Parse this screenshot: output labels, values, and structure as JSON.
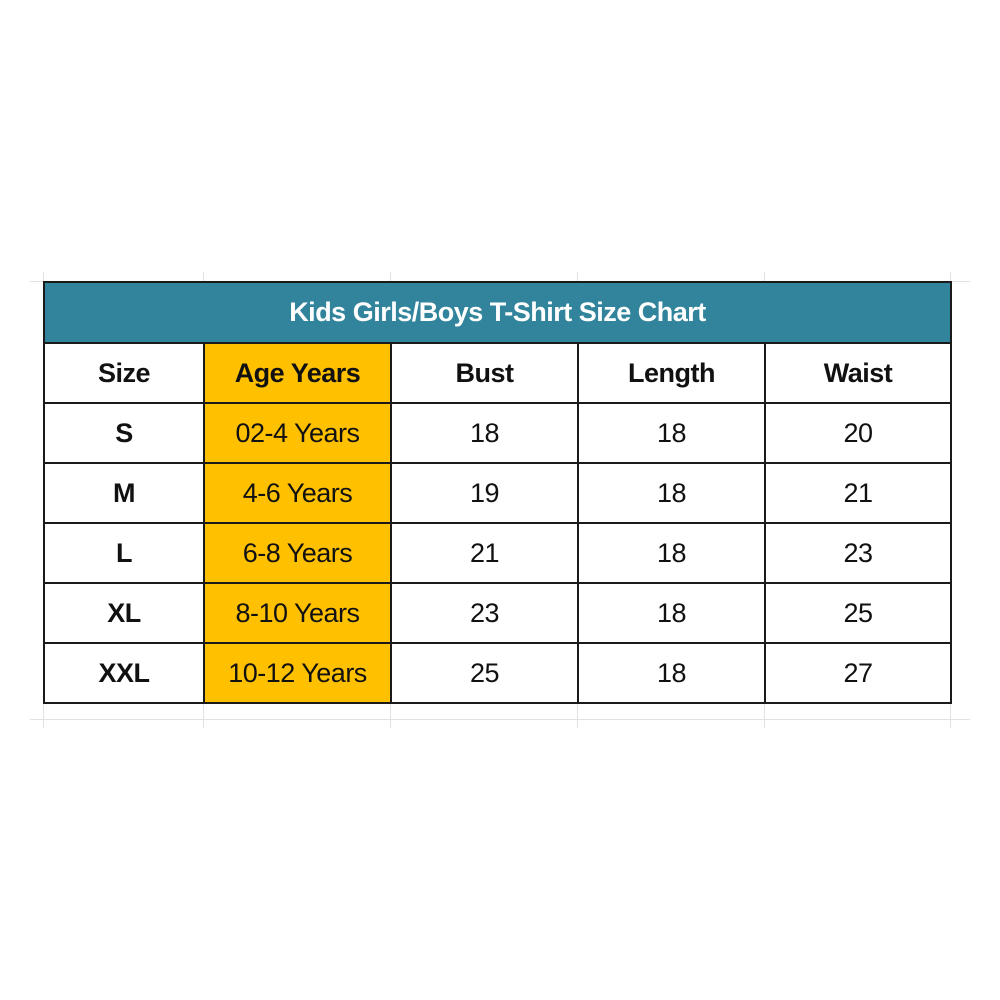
{
  "title": "Kids Girls/Boys T-Shirt Size Chart",
  "colors": {
    "title_bg": "#31849b",
    "age_column_bg": "#ffc000"
  },
  "columns": [
    "Size",
    "Age Years",
    "Bust",
    "Length",
    "Waist"
  ],
  "rows": [
    [
      "S",
      "02-4 Years",
      "18",
      "18",
      "20"
    ],
    [
      "M",
      "4-6 Years",
      "19",
      "18",
      "21"
    ],
    [
      "L",
      "6-8 Years",
      "21",
      "18",
      "23"
    ],
    [
      "XL",
      "8-10 Years",
      "23",
      "18",
      "25"
    ],
    [
      "XXL",
      "10-12 Years",
      "25",
      "18",
      "27"
    ]
  ]
}
